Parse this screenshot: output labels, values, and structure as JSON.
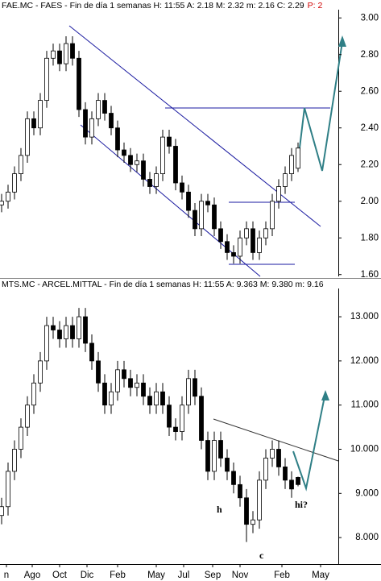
{
  "chart_data": [
    {
      "type": "candlestick",
      "title": "FAE.MC - FAES - Fin de día 1 semanas H: 11:55 A: 2.18 M: 2.32 m: 2.16 C: 2.29",
      "title_extra": "P: 2",
      "title_extra_color": "#d00000",
      "up_color": "#ffffff",
      "down_color": "#000000",
      "xlim": [
        -0.5,
        104.5
      ],
      "ylim": [
        1.59,
        3.045
      ],
      "yticks": [
        {
          "value": 1.6,
          "label": "1.60"
        },
        {
          "value": 1.8,
          "label": "1.80"
        },
        {
          "value": 2.0,
          "label": "2.00"
        },
        {
          "value": 2.2,
          "label": "2.20"
        },
        {
          "value": 2.4,
          "label": "2.40"
        },
        {
          "value": 2.6,
          "label": "2.60"
        },
        {
          "value": 2.8,
          "label": "2.80"
        },
        {
          "value": 3.0,
          "label": "3.00"
        }
      ],
      "x": [
        0,
        2,
        4,
        6,
        8,
        10,
        12,
        14,
        16,
        18,
        20,
        22,
        24,
        26,
        28,
        30,
        32,
        34,
        36,
        38,
        40,
        42,
        44,
        46,
        48,
        50,
        52,
        54,
        56,
        58,
        60,
        62,
        64,
        66,
        68,
        70,
        72,
        74,
        76,
        78,
        80,
        82,
        84,
        86,
        88,
        90,
        92
      ],
      "open": [
        1.98,
        2.0,
        2.05,
        2.15,
        2.25,
        2.45,
        2.4,
        2.55,
        2.78,
        2.82,
        2.75,
        2.86,
        2.78,
        2.5,
        2.35,
        2.45,
        2.55,
        2.48,
        2.4,
        2.28,
        2.25,
        2.2,
        2.22,
        2.12,
        2.08,
        2.15,
        2.35,
        2.3,
        2.1,
        2.05,
        1.95,
        1.85,
        2.0,
        1.98,
        1.85,
        1.78,
        1.72,
        1.7,
        1.8,
        1.85,
        1.72,
        1.8,
        1.85,
        2.0,
        2.08,
        2.15,
        2.18
      ],
      "high": [
        2.04,
        2.09,
        2.19,
        2.29,
        2.49,
        2.49,
        2.59,
        2.82,
        2.86,
        2.86,
        2.9,
        2.9,
        2.82,
        2.54,
        2.49,
        2.59,
        2.59,
        2.52,
        2.44,
        2.32,
        2.29,
        2.26,
        2.26,
        2.16,
        2.19,
        2.39,
        2.39,
        2.34,
        2.14,
        2.09,
        1.99,
        2.04,
        2.04,
        2.02,
        1.89,
        1.82,
        1.76,
        1.84,
        1.89,
        1.89,
        1.84,
        1.89,
        2.04,
        2.12,
        2.19,
        2.29,
        2.32
      ],
      "low": [
        1.94,
        1.96,
        2.01,
        2.11,
        2.21,
        2.36,
        2.36,
        2.51,
        2.74,
        2.71,
        2.71,
        2.74,
        2.46,
        2.31,
        2.31,
        2.41,
        2.44,
        2.36,
        2.24,
        2.21,
        2.16,
        2.16,
        2.08,
        2.04,
        2.04,
        2.11,
        2.26,
        2.06,
        2.01,
        1.91,
        1.81,
        1.81,
        1.94,
        1.81,
        1.74,
        1.68,
        1.66,
        1.66,
        1.76,
        1.68,
        1.68,
        1.76,
        1.81,
        1.96,
        2.04,
        2.11,
        2.16
      ],
      "close": [
        2.0,
        2.05,
        2.15,
        2.25,
        2.45,
        2.4,
        2.55,
        2.78,
        2.82,
        2.75,
        2.86,
        2.78,
        2.5,
        2.35,
        2.45,
        2.55,
        2.48,
        2.4,
        2.28,
        2.25,
        2.2,
        2.22,
        2.12,
        2.08,
        2.15,
        2.35,
        2.3,
        2.1,
        2.05,
        1.95,
        1.85,
        2.0,
        1.98,
        1.85,
        1.78,
        1.72,
        1.7,
        1.8,
        1.85,
        1.72,
        1.8,
        1.85,
        2.0,
        2.08,
        2.15,
        2.25,
        2.29
      ]
    },
    {
      "type": "candlestick",
      "title": "MTS.MC - ARCEL.MITTAL - Fin de día 1 semanas H: 11:55 A: 9.363 M: 9.380 m: 9.16",
      "up_color": "#ffffff",
      "down_color": "#000000",
      "xlim": [
        -0.5,
        104.5
      ],
      "ylim": [
        7.4,
        13.64
      ],
      "xticks": [
        {
          "value": 1.5,
          "label": "n"
        },
        {
          "value": 9.5,
          "label": "Ago"
        },
        {
          "value": 18,
          "label": "Oct"
        },
        {
          "value": 26.5,
          "label": "Dic"
        },
        {
          "value": 36,
          "label": "Feb"
        },
        {
          "value": 48,
          "label": "May"
        },
        {
          "value": 56.5,
          "label": "Jul"
        },
        {
          "value": 65.5,
          "label": "Sep"
        },
        {
          "value": 74,
          "label": "Nov"
        },
        {
          "value": 87,
          "label": "Feb"
        },
        {
          "value": 99,
          "label": "May"
        }
      ],
      "yticks": [
        {
          "value": 8,
          "label": "8.000"
        },
        {
          "value": 9,
          "label": "9.000"
        },
        {
          "value": 10,
          "label": "10.000"
        },
        {
          "value": 11,
          "label": "11.000"
        },
        {
          "value": 12,
          "label": "12.000"
        },
        {
          "value": 13,
          "label": "13.000"
        }
      ],
      "annotations": [
        "h",
        "hi?",
        "c"
      ],
      "x": [
        0,
        2,
        4,
        6,
        8,
        10,
        12,
        14,
        16,
        18,
        20,
        22,
        24,
        26,
        28,
        30,
        32,
        34,
        36,
        38,
        40,
        42,
        44,
        46,
        48,
        50,
        52,
        54,
        56,
        58,
        60,
        62,
        64,
        66,
        68,
        70,
        72,
        74,
        76,
        78,
        80,
        82,
        84,
        86,
        88,
        90,
        92
      ],
      "open": [
        8.5,
        8.7,
        9.5,
        10.0,
        10.5,
        11.0,
        11.5,
        12.0,
        12.8,
        12.7,
        12.5,
        12.8,
        12.5,
        13.0,
        12.4,
        12.0,
        11.5,
        11.0,
        11.3,
        11.8,
        11.6,
        11.4,
        11.5,
        11.2,
        11.0,
        11.3,
        11.0,
        10.5,
        10.4,
        11.0,
        11.6,
        11.2,
        10.2,
        9.5,
        10.2,
        9.8,
        9.5,
        9.2,
        8.9,
        8.3,
        8.4,
        9.3,
        9.8,
        10.0,
        9.6,
        9.3,
        9.363
      ],
      "high": [
        8.9,
        9.7,
        10.2,
        10.7,
        11.2,
        11.7,
        12.2,
        13.0,
        13.0,
        12.9,
        13.0,
        13.0,
        13.2,
        13.2,
        12.6,
        12.2,
        11.7,
        11.5,
        12.0,
        12.0,
        11.8,
        11.7,
        11.7,
        11.4,
        11.5,
        11.5,
        11.2,
        10.7,
        11.2,
        11.8,
        11.8,
        11.4,
        10.4,
        10.4,
        10.4,
        10.0,
        9.7,
        9.4,
        9.1,
        8.6,
        9.5,
        10.0,
        10.2,
        10.2,
        9.8,
        9.5,
        9.38
      ],
      "low": [
        8.3,
        8.5,
        9.3,
        9.8,
        10.3,
        10.8,
        11.3,
        11.8,
        12.5,
        12.3,
        12.3,
        12.3,
        12.3,
        12.2,
        11.8,
        11.3,
        10.8,
        10.8,
        11.1,
        11.4,
        11.2,
        11.2,
        11.0,
        10.8,
        10.8,
        10.8,
        10.3,
        10.2,
        10.2,
        10.8,
        11.0,
        10.0,
        9.3,
        9.3,
        9.6,
        9.3,
        9.0,
        8.7,
        7.9,
        8.1,
        8.2,
        9.1,
        9.6,
        9.4,
        9.1,
        8.9,
        9.16
      ],
      "close": [
        8.7,
        9.5,
        10.0,
        10.5,
        11.0,
        11.5,
        12.0,
        12.8,
        12.7,
        12.5,
        12.8,
        12.5,
        13.0,
        12.4,
        12.0,
        11.5,
        11.0,
        11.3,
        11.8,
        11.6,
        11.4,
        11.5,
        11.2,
        11.0,
        11.3,
        11.0,
        10.5,
        10.4,
        11.0,
        11.6,
        11.2,
        10.2,
        9.5,
        10.2,
        9.8,
        9.5,
        9.2,
        8.9,
        8.3,
        8.4,
        9.3,
        9.8,
        10.0,
        9.6,
        9.3,
        9.1,
        9.2
      ]
    }
  ]
}
